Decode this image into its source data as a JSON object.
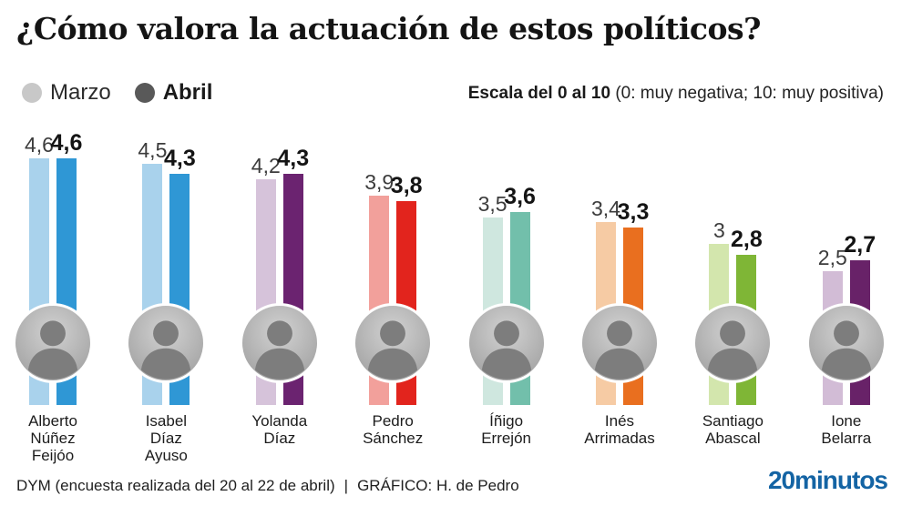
{
  "header": {
    "title": "¿Cómo valora la actuación de estos políticos?",
    "legend": [
      {
        "label": "Marzo",
        "color": "#c8c8c8",
        "bold": false
      },
      {
        "label": "Abril",
        "color": "#595959",
        "bold": true
      }
    ],
    "scale_note_bold": "Escala del 0 al 10",
    "scale_note_rest": " (0: muy negativa; 10: muy positiva)"
  },
  "chart_data": {
    "type": "bar",
    "title": "¿Cómo valora la actuación de estos políticos?",
    "subtitle": "Escala del 0 al 10 (0: muy negativa; 10: muy positiva)",
    "series_names": [
      "Marzo",
      "Abril"
    ],
    "ylim": [
      0,
      10
    ],
    "grid": false,
    "legend_position": "top-left",
    "categories": [
      "Alberto Núñez Feijóo",
      "Isabel Díaz Ayuso",
      "Yolanda Díaz",
      "Pedro Sánchez",
      "Íñigo Errejón",
      "Inés Arrimadas",
      "Santiago Abascal",
      "Ione Belarra"
    ],
    "series": [
      {
        "name": "Marzo",
        "values": [
          4.6,
          4.5,
          4.2,
          3.9,
          3.5,
          3.4,
          3.0,
          2.5
        ]
      },
      {
        "name": "Abril",
        "values": [
          4.6,
          4.3,
          4.3,
          3.8,
          3.6,
          3.3,
          2.8,
          2.7
        ]
      }
    ],
    "items": [
      {
        "name": "Alberto Núñez Feijóo",
        "name_lines": [
          "Alberto",
          "Núñez",
          "Feijóo"
        ],
        "marzo": 4.6,
        "abril": 4.6,
        "marzo_label": "4,6",
        "abril_label": "4,6",
        "marzo_color": "#a9d2ec",
        "abril_color": "#2f97d5"
      },
      {
        "name": "Isabel Díaz Ayuso",
        "name_lines": [
          "Isabel",
          "Díaz",
          "Ayuso"
        ],
        "marzo": 4.5,
        "abril": 4.3,
        "marzo_label": "4,5",
        "abril_label": "4,3",
        "marzo_color": "#a9d2ec",
        "abril_color": "#2f97d5"
      },
      {
        "name": "Yolanda Díaz",
        "name_lines": [
          "Yolanda",
          "Díaz"
        ],
        "marzo": 4.2,
        "abril": 4.3,
        "marzo_label": "4,2",
        "abril_label": "4,3",
        "marzo_color": "#d6c3da",
        "abril_color": "#6b2370"
      },
      {
        "name": "Pedro Sánchez",
        "name_lines": [
          "Pedro",
          "Sánchez"
        ],
        "marzo": 3.9,
        "abril": 3.8,
        "marzo_label": "3,9",
        "abril_label": "3,8",
        "marzo_color": "#f2a09b",
        "abril_color": "#e2241d"
      },
      {
        "name": "Íñigo Errejón",
        "name_lines": [
          "Íñigo",
          "Errejón"
        ],
        "marzo": 3.5,
        "abril": 3.6,
        "marzo_label": "3,5",
        "abril_label": "3,6",
        "marzo_color": "#cfe7df",
        "abril_color": "#72bfab"
      },
      {
        "name": "Inés Arrimadas",
        "name_lines": [
          "Inés",
          "Arrimadas"
        ],
        "marzo": 3.4,
        "abril": 3.3,
        "marzo_label": "3,4",
        "abril_label": "3,3",
        "marzo_color": "#f6cba4",
        "abril_color": "#e96f1f"
      },
      {
        "name": "Santiago Abascal",
        "name_lines": [
          "Santiago",
          "Abascal"
        ],
        "marzo": 3.0,
        "abril": 2.8,
        "marzo_label": "3",
        "abril_label": "2,8",
        "marzo_color": "#d3e6ad",
        "abril_color": "#7fb636"
      },
      {
        "name": "Ione Belarra",
        "name_lines": [
          "Ione",
          "Belarra"
        ],
        "marzo": 2.5,
        "abril": 2.7,
        "marzo_label": "2,5",
        "abril_label": "2,7",
        "marzo_color": "#d2bcd6",
        "abril_color": "#682268"
      }
    ]
  },
  "footer": {
    "source": "DYM (encuesta realizada del 20 al 22 de abril)",
    "separator": "|",
    "credit": "GRÁFICO: H. de Pedro",
    "brand": "20minutos",
    "brand_color": "#1464a4"
  }
}
